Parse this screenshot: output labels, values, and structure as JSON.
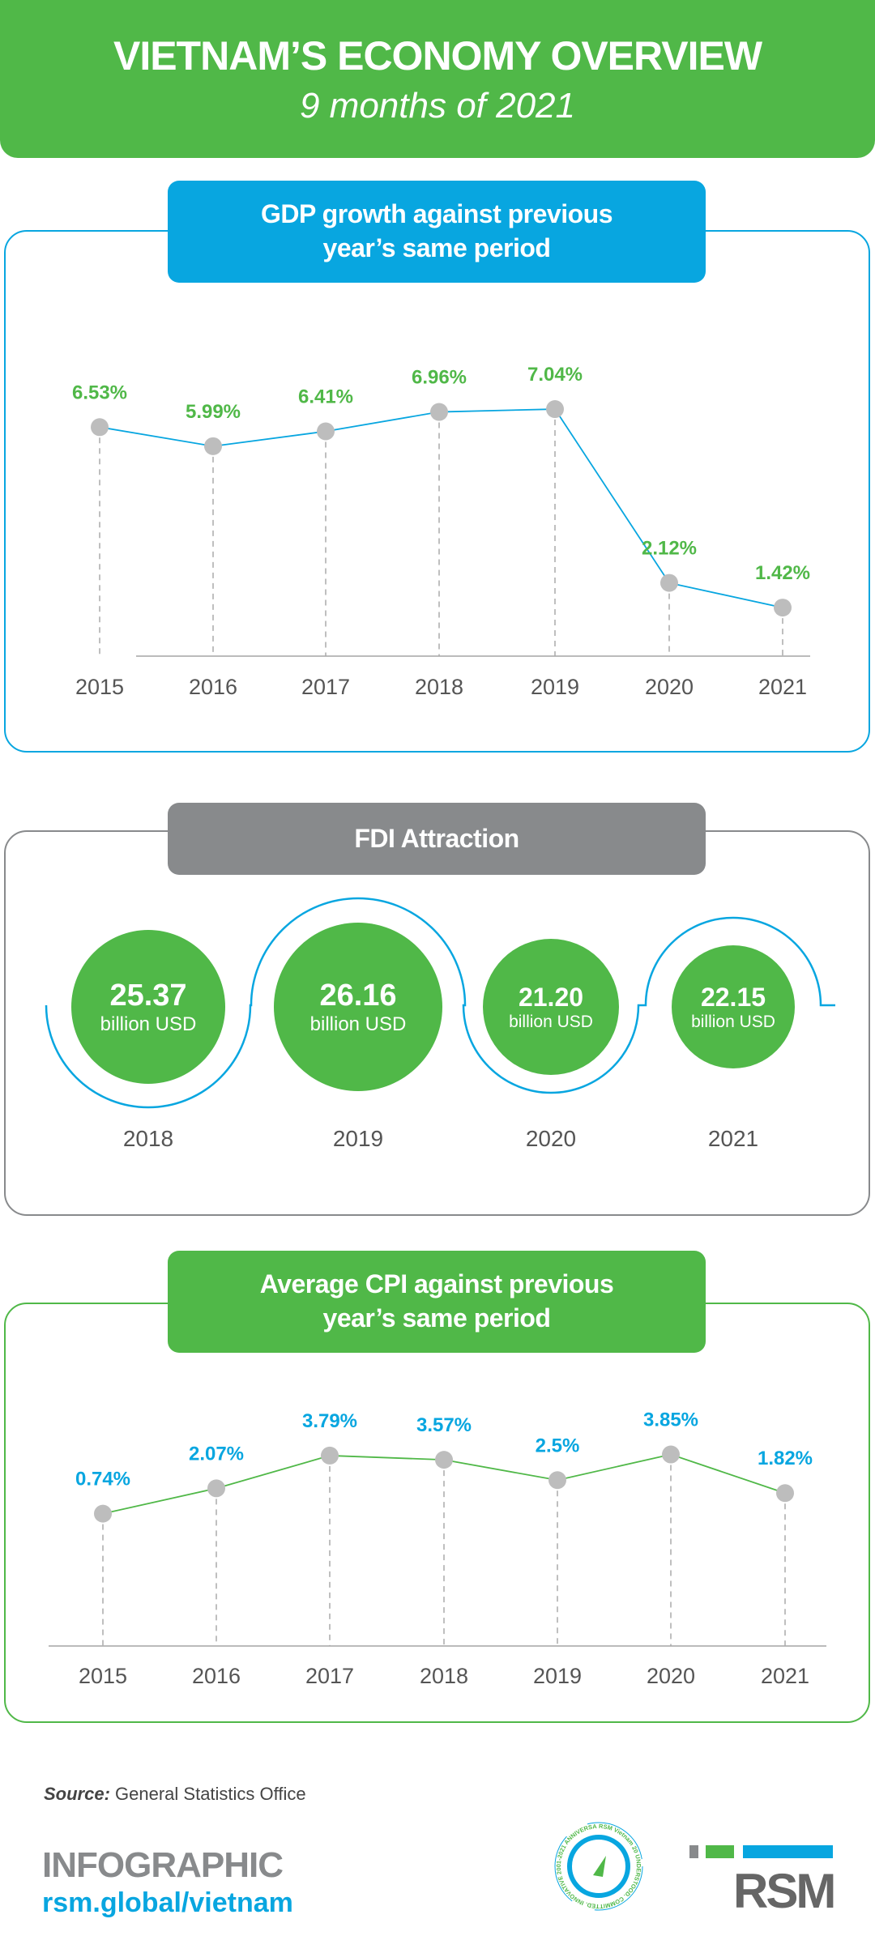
{
  "header": {
    "title": "VIETNAM’S ECONOMY OVERVIEW",
    "subtitle": "9 months of 2021"
  },
  "colors": {
    "green": "#50b848",
    "blue": "#08a6e0",
    "gray": "#888a8c"
  },
  "chart_data": [
    {
      "type": "line",
      "title": "GDP growth against previous\nyear’s same period",
      "categories": [
        "2015",
        "2016",
        "2017",
        "2018",
        "2019",
        "2020",
        "2021"
      ],
      "values": [
        6.53,
        5.99,
        6.41,
        6.96,
        7.04,
        2.12,
        1.42
      ],
      "labels": [
        "6.53%",
        "5.99%",
        "6.41%",
        "6.96%",
        "7.04%",
        "2.12%",
        "1.42%"
      ],
      "unit": "%"
    },
    {
      "type": "bar",
      "title": "FDI Attraction",
      "categories": [
        "2018",
        "2019",
        "2020",
        "2021"
      ],
      "values": [
        25.37,
        26.16,
        21.2,
        22.15
      ],
      "labels": [
        "25.37",
        "26.16",
        "21.20",
        "22.15"
      ],
      "unit_label": "billion USD"
    },
    {
      "type": "line",
      "title": "Average CPI  against  previous\nyear’s same period",
      "categories": [
        "2015",
        "2016",
        "2017",
        "2018",
        "2019",
        "2020",
        "2021"
      ],
      "values": [
        0.74,
        2.07,
        3.79,
        3.57,
        2.5,
        3.85,
        1.82
      ],
      "labels": [
        "0.74%",
        "2.07%",
        "3.79%",
        "3.57%",
        "2.5%",
        "3.85%",
        "1.82%"
      ],
      "unit": "%"
    }
  ],
  "footer": {
    "source_label": "Source:",
    "source_text": " General Statistics Office",
    "infographic": "INFOGRAPHIC",
    "url": "rsm.global/vietnam",
    "badge_text": "RSM Vietnam 20 UNDERSTOOD. COMMITTED. INNOVATIVE 2001-2021 ANNIVERSARY",
    "brand": "RSM"
  }
}
